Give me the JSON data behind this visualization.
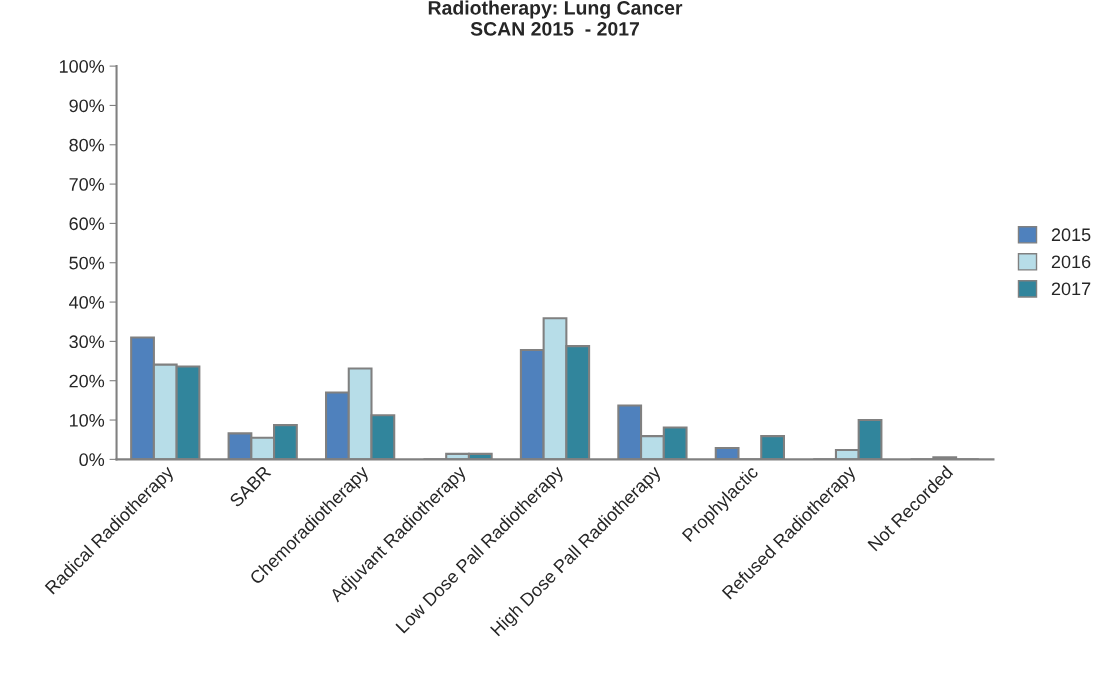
{
  "chart_data": {
    "type": "bar",
    "title": "Radiotherapy: Lung Cancer\nSCAN 2015  - 2017",
    "categories": [
      "Radical Radiotherapy",
      "SABR",
      "Chemoradiotherapy",
      "Adjuvant Radiotherapy",
      "Low Dose Pall Radiotherapy",
      "High Dose Pall Radiotherapy",
      "Prophylactic",
      "Refused Radiotherapy",
      "Not Recorded"
    ],
    "series": [
      {
        "name": "2015",
        "color": "#4f81bd",
        "values": [
          31.0,
          6.6,
          17.0,
          0,
          27.8,
          13.7,
          2.9,
          0,
          0
        ]
      },
      {
        "name": "2016",
        "color": "#b7dde8",
        "values": [
          24.1,
          5.5,
          23.1,
          1.4,
          35.9,
          5.9,
          0,
          2.4,
          0.5
        ]
      },
      {
        "name": "2017",
        "color": "#31859c",
        "values": [
          23.6,
          8.7,
          11.2,
          1.4,
          28.8,
          8.1,
          5.9,
          10.0,
          0
        ]
      }
    ],
    "ylim": [
      0,
      100
    ],
    "yticks": [
      {
        "value": 0,
        "label": "0%"
      },
      {
        "value": 10,
        "label": "10%"
      },
      {
        "value": 20,
        "label": "20%"
      },
      {
        "value": 30,
        "label": "30%"
      },
      {
        "value": 40,
        "label": "40%"
      },
      {
        "value": 50,
        "label": "50%"
      },
      {
        "value": 60,
        "label": "60%"
      },
      {
        "value": 70,
        "label": "70%"
      },
      {
        "value": 80,
        "label": "80%"
      },
      {
        "value": 90,
        "label": "90%"
      },
      {
        "value": 100,
        "label": "100%"
      }
    ],
    "grid": false,
    "legend": "right"
  }
}
